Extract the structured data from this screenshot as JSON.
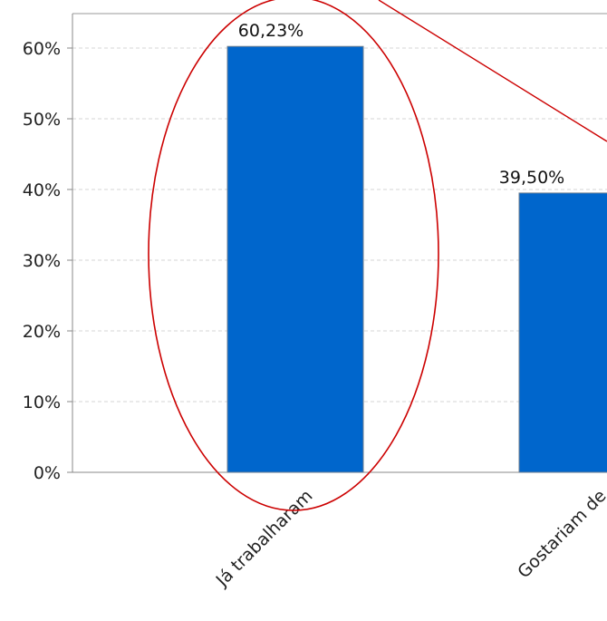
{
  "chart_data": {
    "type": "bar",
    "title": "",
    "xlabel": "",
    "ylabel": "",
    "categories": [
      "Já trabalharam",
      "Gostariam de"
    ],
    "values": [
      60.23,
      39.5
    ],
    "value_labels": [
      "60,23%",
      "39,50%"
    ],
    "ylim": [
      0,
      65
    ],
    "y_ticks": [
      0,
      10,
      20,
      30,
      40,
      50,
      60
    ],
    "y_tick_labels": [
      "0%",
      "10%",
      "20%",
      "30%",
      "40%",
      "50%",
      "60%"
    ],
    "grid": true,
    "legend": "none",
    "bar_color": "#0066CC",
    "annotation_color": "#CC0000"
  }
}
